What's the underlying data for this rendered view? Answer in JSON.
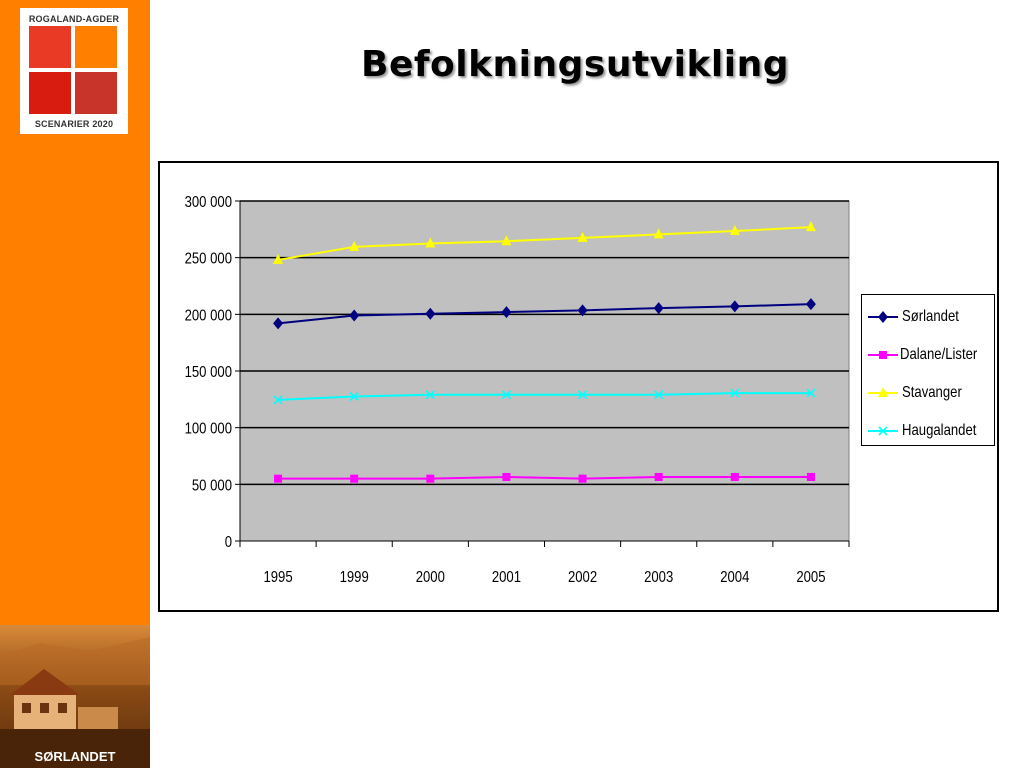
{
  "sidebar": {
    "logo": {
      "top_text": "ROGALAND-AGDER",
      "bottom_text": "SCENARIER 2020",
      "square_colors": [
        "#e83a24",
        "#ff8000",
        "#d81c10",
        "#c8342a"
      ]
    },
    "photo_caption": "SØRLANDET"
  },
  "slide": {
    "title": "Befolkningsutvikling"
  },
  "colors": {
    "sidebar": "#ff8000",
    "plot_area": "#c0c0c0"
  },
  "chart_data": {
    "type": "line",
    "categories": [
      "1995",
      "1999",
      "2000",
      "2001",
      "2002",
      "2003",
      "2004",
      "2005"
    ],
    "ylim": [
      0,
      300000
    ],
    "yticks": [
      0,
      50000,
      100000,
      150000,
      200000,
      250000,
      300000
    ],
    "ytick_labels": [
      "0",
      "50 000",
      "100 000",
      "150 000",
      "200 000",
      "250 000",
      "300 000"
    ],
    "grid": "horizontal",
    "legend": "right",
    "plot_background": "#c0c0c0",
    "series": [
      {
        "name": "Sørlandet",
        "color": "#000080",
        "marker": "diamond",
        "values": [
          192000,
          199000,
          200500,
          202000,
          203500,
          205500,
          207000,
          209000
        ]
      },
      {
        "name": "Dalane/Lister",
        "color": "#ff00ff",
        "marker": "square",
        "values": [
          55000,
          55000,
          55000,
          56500,
          55000,
          56500,
          56500,
          56500
        ]
      },
      {
        "name": "Stavanger",
        "color": "#ffff00",
        "marker": "triangle",
        "values": [
          248000,
          259500,
          262500,
          264500,
          267500,
          270500,
          273500,
          277000
        ]
      },
      {
        "name": "Haugalandet",
        "color": "#00ffff",
        "marker": "x",
        "values": [
          124500,
          127500,
          129000,
          129000,
          129000,
          129000,
          130500,
          130500
        ]
      }
    ]
  }
}
